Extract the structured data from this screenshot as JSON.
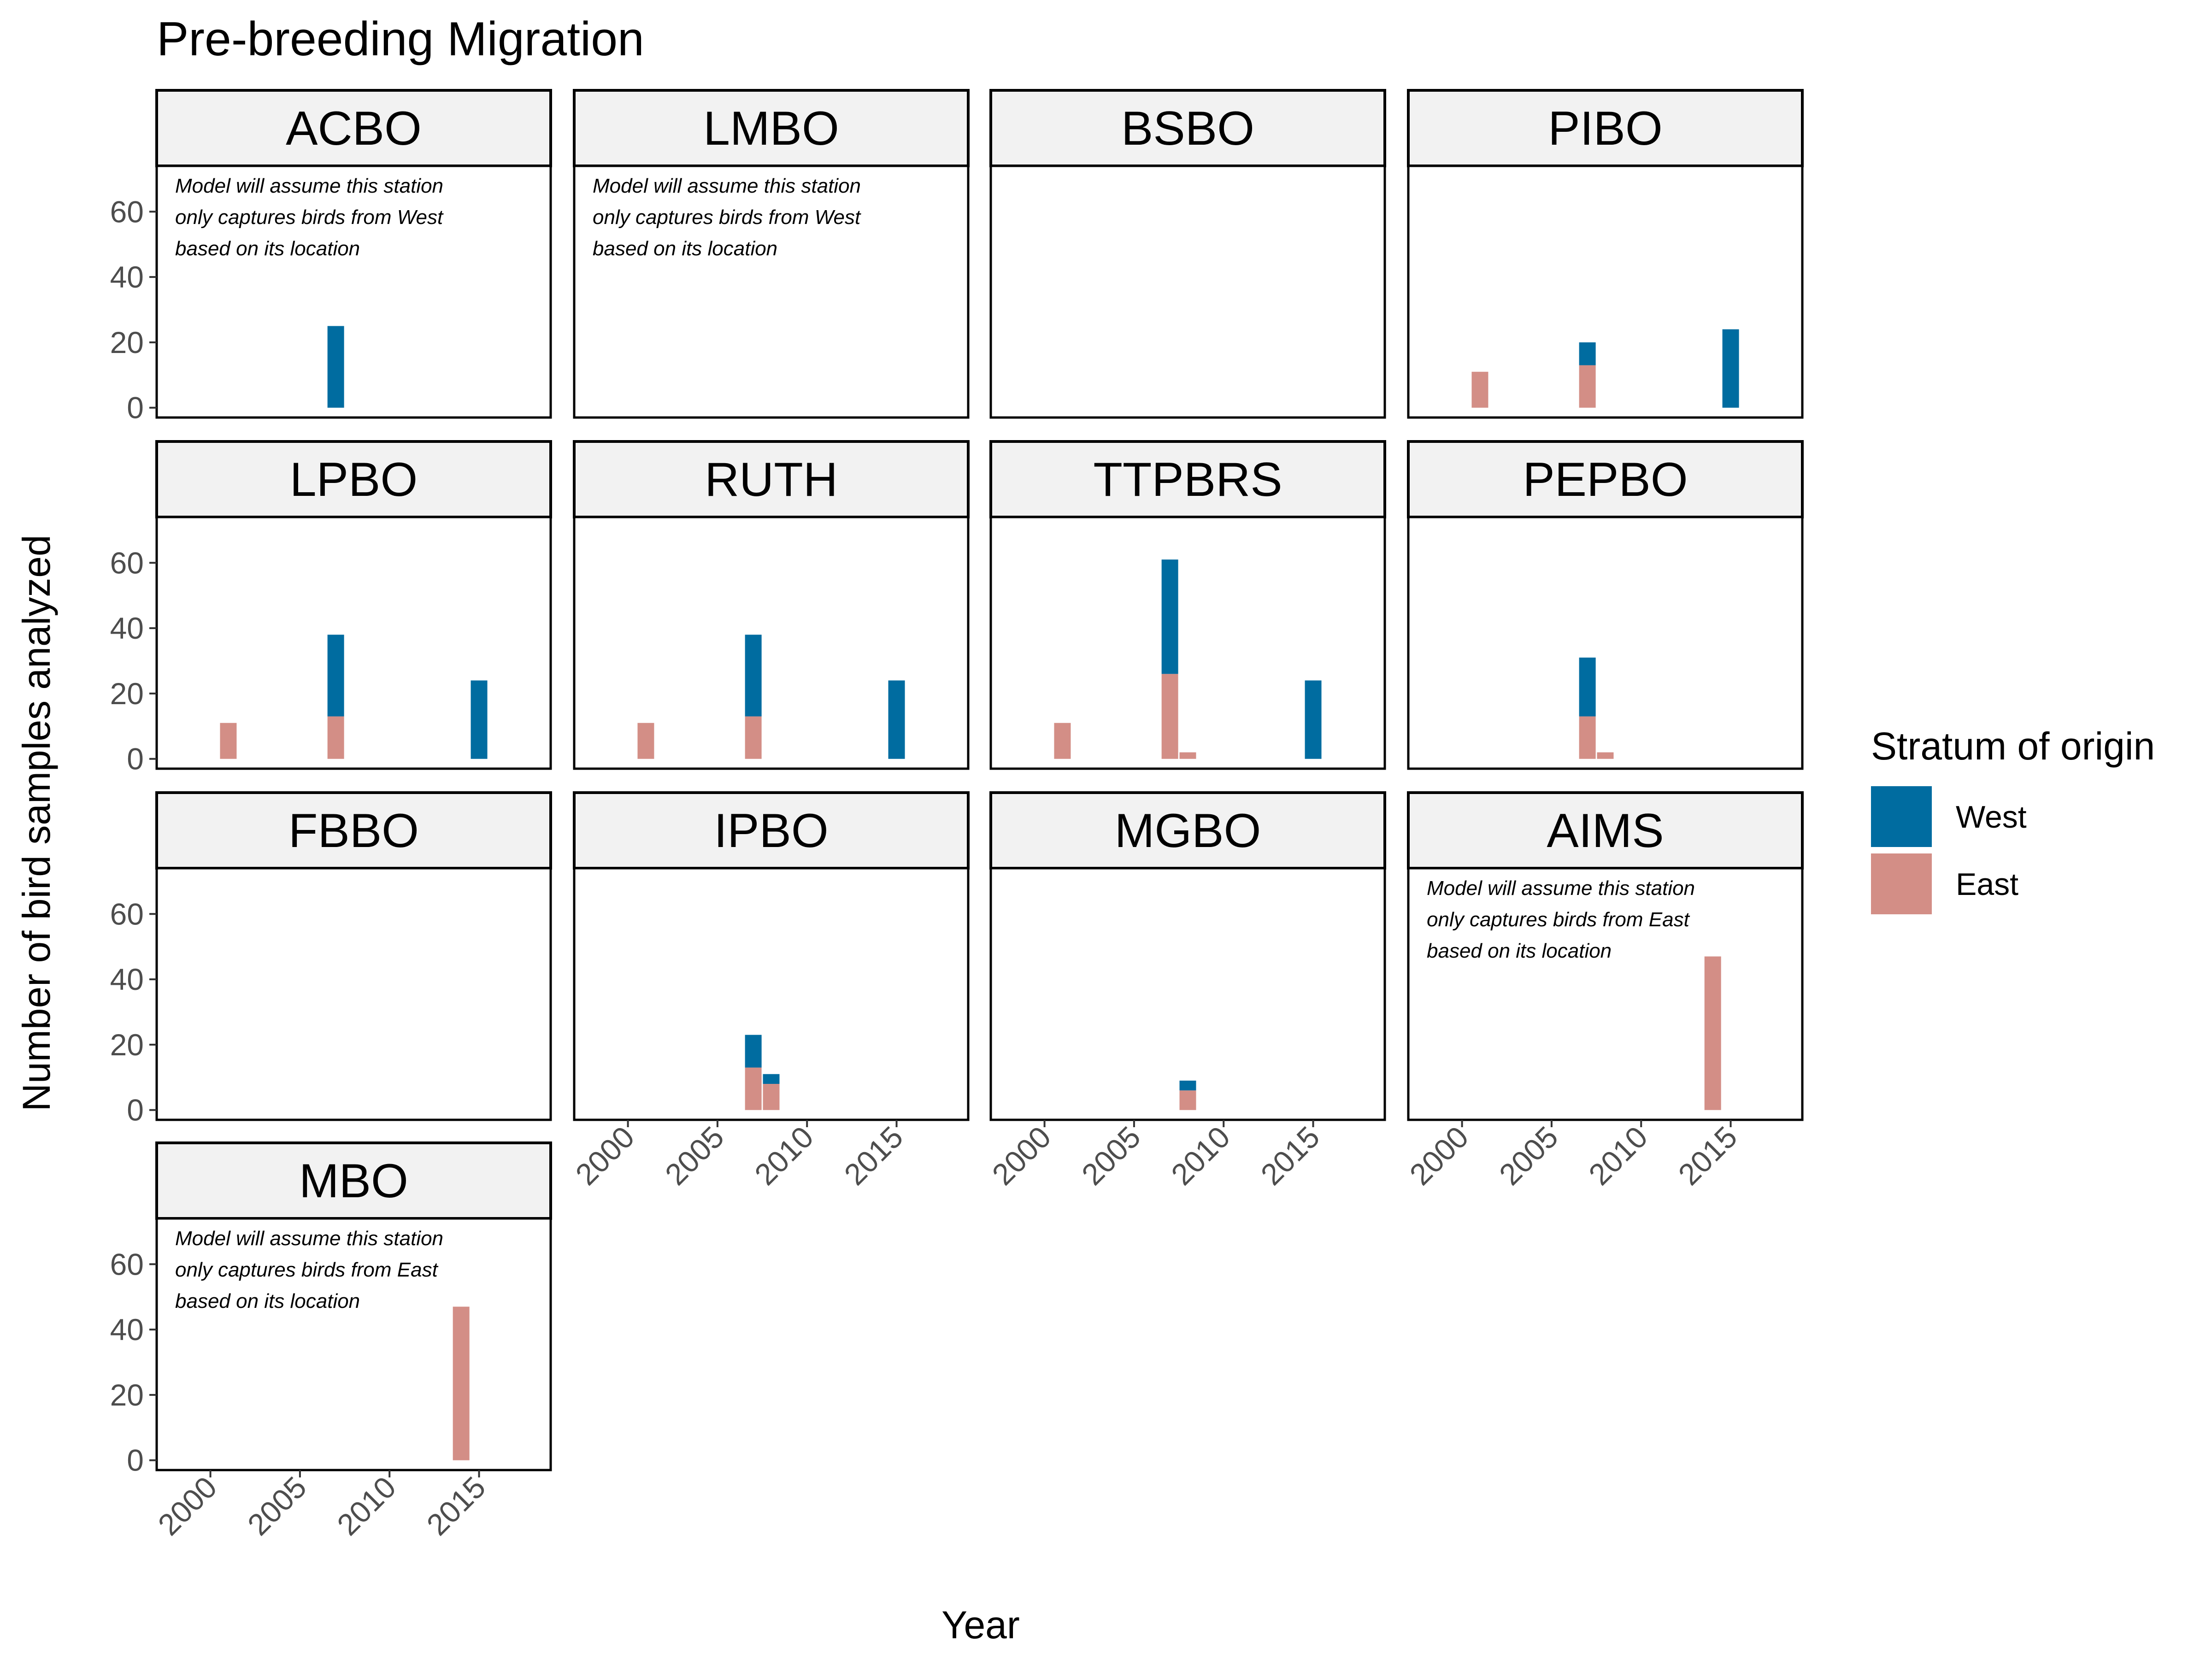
{
  "chart_data": {
    "type": "bar",
    "title": "Pre-breeding Migration",
    "xlabel": "Year",
    "ylabel": "Number of bird samples analyzed",
    "xlim": [
      1997,
      2019
    ],
    "ylim": [
      -3,
      74
    ],
    "x_ticks": [
      2000,
      2005,
      2010,
      2015
    ],
    "y_ticks": [
      0,
      20,
      40,
      60
    ],
    "legend": {
      "title": "Stratum of origin",
      "placement": "right",
      "entries": [
        {
          "name": "West",
          "color": "#006ca0"
        },
        {
          "name": "East",
          "color": "#d38e86"
        }
      ]
    },
    "panels": [
      {
        "station": "ACBO",
        "note": [
          "Model will assume this station",
          "only captures birds from West",
          "based on its location"
        ],
        "bars": [
          {
            "year": 2007,
            "West": 25,
            "East": 0
          }
        ]
      },
      {
        "station": "LMBO",
        "note": [
          "Model will assume this station",
          "only captures birds from West",
          "based on its location"
        ],
        "bars": []
      },
      {
        "station": "BSBO",
        "bars": []
      },
      {
        "station": "PIBO",
        "bars": [
          {
            "year": 2001,
            "West": 0,
            "East": 11
          },
          {
            "year": 2007,
            "West": 7,
            "East": 13
          },
          {
            "year": 2015,
            "West": 24,
            "East": 0
          }
        ]
      },
      {
        "station": "LPBO",
        "bars": [
          {
            "year": 2001,
            "West": 0,
            "East": 11
          },
          {
            "year": 2007,
            "West": 25,
            "East": 13
          },
          {
            "year": 2015,
            "West": 24,
            "East": 0
          }
        ]
      },
      {
        "station": "RUTH",
        "bars": [
          {
            "year": 2001,
            "West": 0,
            "East": 11
          },
          {
            "year": 2007,
            "West": 25,
            "East": 13
          },
          {
            "year": 2015,
            "West": 24,
            "East": 0
          }
        ]
      },
      {
        "station": "TTPBRS",
        "bars": [
          {
            "year": 2001,
            "West": 0,
            "East": 11
          },
          {
            "year": 2007,
            "West": 35,
            "East": 26
          },
          {
            "year": 2008,
            "West": 0,
            "East": 2
          },
          {
            "year": 2015,
            "West": 24,
            "East": 0
          }
        ]
      },
      {
        "station": "PEPBO",
        "bars": [
          {
            "year": 2007,
            "West": 18,
            "East": 13
          },
          {
            "year": 2008,
            "West": 0,
            "East": 2
          }
        ]
      },
      {
        "station": "FBBO",
        "bars": []
      },
      {
        "station": "IPBO",
        "bars": [
          {
            "year": 2007,
            "West": 10,
            "East": 13
          },
          {
            "year": 2008,
            "West": 3,
            "East": 8
          }
        ]
      },
      {
        "station": "MGBO",
        "bars": [
          {
            "year": 2008,
            "West": 3,
            "East": 6
          }
        ]
      },
      {
        "station": "AIMS",
        "note": [
          "Model will assume this station",
          "only captures birds from East",
          "based on its location"
        ],
        "bars": [
          {
            "year": 2014,
            "West": 0,
            "East": 47
          }
        ]
      },
      {
        "station": "MBO",
        "note": [
          "Model will assume this station",
          "only captures birds from East",
          "based on its location"
        ],
        "bars": [
          {
            "year": 2014,
            "West": 0,
            "East": 47
          }
        ]
      }
    ]
  }
}
